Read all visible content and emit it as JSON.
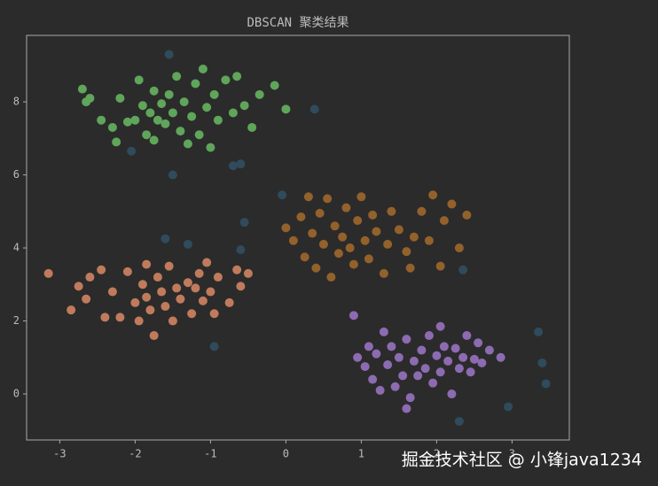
{
  "chart_data": {
    "type": "scatter",
    "title": "DBSCAN 聚类结果",
    "annotation": "掘金技术社区 @ 小锋java1234",
    "xlim": [
      -3.44,
      3.76
    ],
    "ylim": [
      -1.26,
      9.82
    ],
    "xticks": [
      -3,
      -2,
      -1,
      0,
      1,
      2,
      3
    ],
    "yticks": [
      0,
      2,
      4,
      6,
      8
    ],
    "grid": false,
    "series": [
      {
        "color": "#5fa55a",
        "x": [
          -2.7,
          -2.65,
          -2.6,
          -2.45,
          -2.3,
          -2.2,
          -2.25,
          -2.1,
          -2.0,
          -1.95,
          -1.9,
          -1.85,
          -1.8,
          -1.75,
          -1.7,
          -1.65,
          -1.6,
          -1.55,
          -1.5,
          -1.45,
          -1.4,
          -1.35,
          -1.3,
          -1.25,
          -1.2,
          -1.15,
          -1.1,
          -1.05,
          -1.0,
          -0.95,
          -0.9,
          -0.8,
          -0.7,
          -0.65,
          -0.55,
          -0.45,
          -0.35,
          -0.15,
          0.0,
          -1.75
        ],
        "values": [
          8.35,
          8.0,
          8.1,
          7.5,
          7.3,
          8.1,
          6.9,
          7.45,
          7.5,
          8.6,
          7.9,
          7.1,
          7.7,
          8.3,
          7.5,
          7.95,
          7.4,
          8.2,
          7.7,
          8.7,
          7.2,
          8.0,
          6.85,
          7.6,
          8.5,
          7.1,
          8.9,
          7.85,
          6.75,
          8.2,
          7.5,
          8.6,
          7.7,
          8.7,
          7.9,
          7.3,
          8.2,
          8.45,
          7.8,
          6.95
        ]
      },
      {
        "color": "#93612b",
        "x": [
          0.0,
          0.1,
          0.2,
          0.25,
          0.3,
          0.35,
          0.4,
          0.45,
          0.5,
          0.55,
          0.6,
          0.65,
          0.7,
          0.75,
          0.8,
          0.85,
          0.9,
          0.95,
          1.0,
          1.05,
          1.1,
          1.15,
          1.2,
          1.3,
          1.35,
          1.4,
          1.5,
          1.6,
          1.7,
          1.8,
          1.65,
          1.9,
          1.95,
          2.1,
          2.2,
          2.4,
          2.05,
          2.3
        ],
        "values": [
          4.55,
          4.2,
          4.85,
          3.75,
          5.4,
          4.4,
          3.45,
          4.95,
          4.1,
          5.35,
          3.2,
          4.6,
          3.85,
          4.3,
          5.1,
          4.0,
          3.55,
          4.75,
          5.4,
          4.2,
          3.7,
          4.9,
          4.45,
          3.3,
          4.1,
          5.0,
          4.5,
          3.9,
          4.3,
          5.0,
          3.45,
          4.2,
          5.45,
          4.75,
          5.2,
          4.9,
          3.5,
          4.0
        ]
      },
      {
        "color": "#c07b5c",
        "x": [
          -3.15,
          -2.85,
          -2.75,
          -2.6,
          -2.65,
          -2.45,
          -2.3,
          -2.2,
          -2.1,
          -2.0,
          -1.95,
          -1.9,
          -1.85,
          -1.8,
          -1.75,
          -1.7,
          -1.65,
          -1.6,
          -1.55,
          -1.5,
          -1.45,
          -1.4,
          -1.3,
          -1.25,
          -1.2,
          -1.15,
          -1.1,
          -1.05,
          -1.0,
          -0.95,
          -0.9,
          -0.75,
          -0.65,
          -0.6,
          -0.5,
          -2.4,
          -1.85
        ],
        "values": [
          3.3,
          2.3,
          2.95,
          3.2,
          2.6,
          3.4,
          2.8,
          2.1,
          3.35,
          2.5,
          2.0,
          3.0,
          2.65,
          2.3,
          1.6,
          3.2,
          2.8,
          2.4,
          3.5,
          2.0,
          2.9,
          2.6,
          3.05,
          2.2,
          2.9,
          3.3,
          2.55,
          3.6,
          2.8,
          2.2,
          3.2,
          2.5,
          3.4,
          2.95,
          3.3,
          2.1,
          3.55
        ]
      },
      {
        "color": "#8c6bb1",
        "x": [
          0.9,
          0.95,
          1.05,
          1.1,
          1.15,
          1.2,
          1.25,
          1.3,
          1.35,
          1.4,
          1.45,
          1.5,
          1.55,
          1.6,
          1.65,
          1.7,
          1.75,
          1.8,
          1.85,
          1.9,
          1.95,
          2.0,
          2.05,
          2.1,
          2.15,
          2.2,
          2.25,
          2.3,
          2.35,
          2.4,
          2.45,
          2.5,
          2.55,
          2.6,
          2.7,
          1.6,
          2.85,
          2.05
        ],
        "values": [
          2.15,
          1.0,
          0.75,
          1.3,
          0.4,
          1.1,
          0.1,
          1.7,
          0.8,
          1.3,
          0.2,
          1.0,
          0.5,
          1.5,
          -0.1,
          0.9,
          0.5,
          1.2,
          0.7,
          1.6,
          0.3,
          1.05,
          0.6,
          1.3,
          0.9,
          0.0,
          1.25,
          0.7,
          1.0,
          1.6,
          0.6,
          0.95,
          1.4,
          0.85,
          1.2,
          -0.4,
          1.0,
          1.85
        ]
      },
      {
        "color": "#2f4b5c",
        "x": [
          -1.55,
          0.38,
          -2.05,
          -1.5,
          -0.7,
          -0.6,
          -0.05,
          -0.55,
          -1.6,
          -1.3,
          -0.6,
          2.35,
          -0.95,
          3.35,
          3.4,
          3.45,
          2.95,
          2.3
        ],
        "values": [
          9.3,
          7.8,
          6.65,
          6.0,
          6.25,
          6.3,
          5.45,
          4.7,
          4.25,
          4.1,
          3.95,
          3.4,
          1.3,
          1.7,
          0.85,
          0.28,
          -0.35,
          -0.75
        ]
      }
    ]
  }
}
